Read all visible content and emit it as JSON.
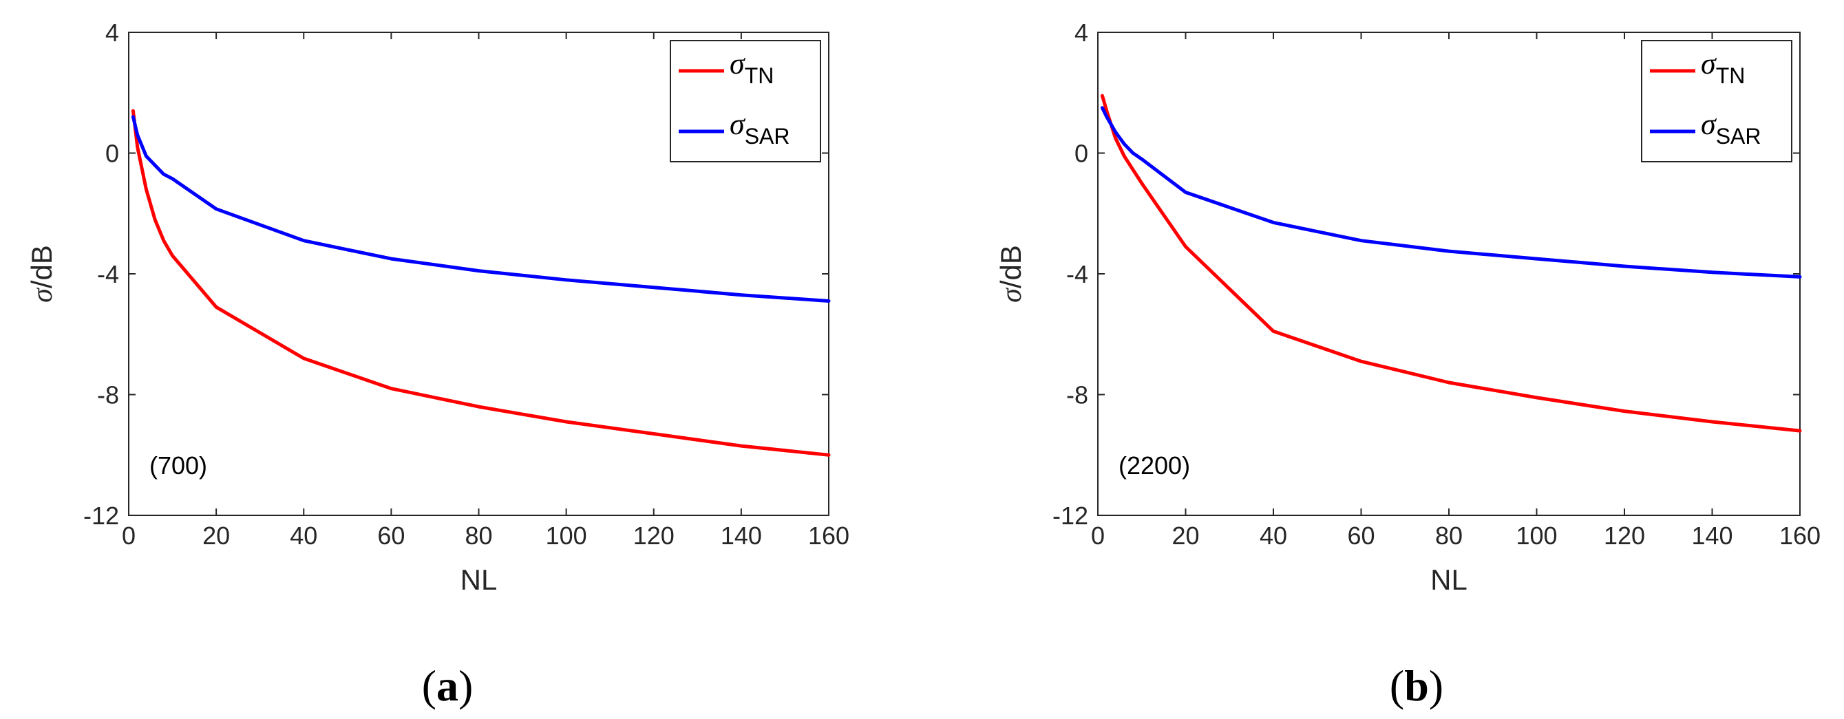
{
  "chart_data": [
    {
      "type": "line",
      "panel_label": "a",
      "annotation": "(700)",
      "xlabel": "NL",
      "ylabel_symbol": "σ",
      "ylabel_unit": "/dB",
      "xlim": [
        0,
        160
      ],
      "ylim": [
        -12,
        4
      ],
      "xticks": [
        0,
        20,
        40,
        60,
        80,
        100,
        120,
        140,
        160
      ],
      "yticks": [
        -12,
        -8,
        -4,
        0,
        4
      ],
      "legend_position": "top-right",
      "series": [
        {
          "name": "σTN",
          "symbol": "σ",
          "subscript": "TN",
          "color": "#ff0000",
          "x": [
            1,
            2,
            4,
            6,
            8,
            10,
            20,
            40,
            60,
            80,
            100,
            120,
            140,
            160
          ],
          "y": [
            1.4,
            0.2,
            -1.2,
            -2.2,
            -2.9,
            -3.4,
            -5.1,
            -6.8,
            -7.8,
            -8.4,
            -8.9,
            -9.3,
            -9.7,
            -10.0
          ]
        },
        {
          "name": "σSAR",
          "symbol": "σ",
          "subscript": "SAR",
          "color": "#0000ff",
          "x": [
            1,
            2,
            4,
            6,
            8,
            10,
            20,
            40,
            60,
            80,
            100,
            120,
            140,
            160
          ],
          "y": [
            1.2,
            0.6,
            -0.1,
            -0.4,
            -0.7,
            -0.85,
            -1.85,
            -2.9,
            -3.5,
            -3.9,
            -4.2,
            -4.45,
            -4.7,
            -4.9
          ]
        }
      ]
    },
    {
      "type": "line",
      "panel_label": "b",
      "annotation": "(2200)",
      "xlabel": "NL",
      "ylabel_symbol": "σ",
      "ylabel_unit": "/dB",
      "xlim": [
        0,
        160
      ],
      "ylim": [
        -12,
        4
      ],
      "xticks": [
        0,
        20,
        40,
        60,
        80,
        100,
        120,
        140,
        160
      ],
      "yticks": [
        -12,
        -8,
        -4,
        0,
        4
      ],
      "legend_position": "top-right",
      "series": [
        {
          "name": "σTN",
          "symbol": "σ",
          "subscript": "TN",
          "color": "#ff0000",
          "x": [
            1,
            2,
            4,
            6,
            8,
            10,
            20,
            40,
            60,
            80,
            100,
            120,
            140,
            160
          ],
          "y": [
            1.9,
            1.4,
            0.5,
            -0.1,
            -0.55,
            -1.0,
            -3.1,
            -5.9,
            -6.9,
            -7.6,
            -8.1,
            -8.55,
            -8.9,
            -9.2
          ]
        },
        {
          "name": "σSAR",
          "symbol": "σ",
          "subscript": "SAR",
          "color": "#0000ff",
          "x": [
            1,
            2,
            4,
            6,
            8,
            10,
            20,
            40,
            60,
            80,
            100,
            120,
            140,
            160
          ],
          "y": [
            1.5,
            1.2,
            0.7,
            0.3,
            0.0,
            -0.2,
            -1.3,
            -2.3,
            -2.9,
            -3.25,
            -3.5,
            -3.75,
            -3.95,
            -4.1
          ]
        }
      ]
    }
  ]
}
